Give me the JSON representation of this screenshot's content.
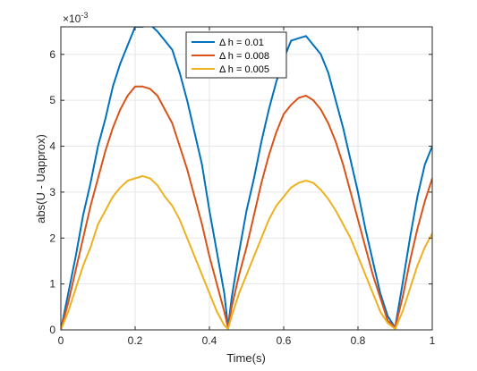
{
  "chart_data": {
    "type": "line",
    "title": "",
    "xlabel": "Time(s)",
    "ylabel": "abs(U - Uapprox)",
    "xlim": [
      0,
      1
    ],
    "ylim": [
      0,
      6.6
    ],
    "y_exponent_label": "×10",
    "y_exponent_power": "-3",
    "grid": true,
    "legend_position": "top-center",
    "x_ticks": [
      0,
      0.2,
      0.4,
      0.6,
      0.8,
      1
    ],
    "x_tick_labels": [
      "0",
      "0.2",
      "0.4",
      "0.6",
      "0.8",
      "1"
    ],
    "y_ticks": [
      0,
      1,
      2,
      3,
      4,
      5,
      6
    ],
    "y_tick_labels": [
      "0",
      "1",
      "2",
      "3",
      "4",
      "5",
      "6"
    ],
    "series": [
      {
        "name": "Δ h = 0.01",
        "color": "#0072BD",
        "x": [
          0,
          0.02,
          0.04,
          0.06,
          0.08,
          0.1,
          0.12,
          0.14,
          0.16,
          0.18,
          0.2,
          0.22,
          0.24,
          0.26,
          0.28,
          0.3,
          0.32,
          0.34,
          0.36,
          0.38,
          0.4,
          0.42,
          0.44,
          0.45,
          0.46,
          0.48,
          0.5,
          0.52,
          0.54,
          0.56,
          0.58,
          0.6,
          0.62,
          0.64,
          0.66,
          0.68,
          0.7,
          0.72,
          0.74,
          0.76,
          0.78,
          0.8,
          0.82,
          0.84,
          0.86,
          0.88,
          0.9,
          0.92,
          0.94,
          0.96,
          0.98,
          1.0
        ],
        "y": [
          0,
          0.8,
          1.6,
          2.5,
          3.2,
          4.0,
          4.6,
          5.3,
          5.8,
          6.2,
          6.6,
          6.6,
          6.65,
          6.5,
          6.3,
          6.1,
          5.6,
          5.0,
          4.3,
          3.6,
          2.6,
          1.7,
          0.8,
          0.05,
          0.7,
          1.7,
          2.6,
          3.3,
          4.1,
          4.8,
          5.4,
          5.9,
          6.3,
          6.35,
          6.4,
          6.2,
          6.0,
          5.6,
          5.0,
          4.4,
          3.7,
          3.0,
          2.2,
          1.5,
          0.8,
          0.3,
          0.05,
          1.0,
          2.0,
          2.9,
          3.6,
          4.0
        ]
      },
      {
        "name": "Δ h = 0.008",
        "color": "#D95319",
        "x": [
          0,
          0.02,
          0.04,
          0.06,
          0.08,
          0.1,
          0.12,
          0.14,
          0.16,
          0.18,
          0.2,
          0.22,
          0.24,
          0.26,
          0.28,
          0.3,
          0.32,
          0.34,
          0.36,
          0.38,
          0.4,
          0.42,
          0.44,
          0.45,
          0.46,
          0.48,
          0.5,
          0.52,
          0.54,
          0.56,
          0.58,
          0.6,
          0.62,
          0.64,
          0.66,
          0.68,
          0.7,
          0.72,
          0.74,
          0.76,
          0.78,
          0.8,
          0.82,
          0.84,
          0.86,
          0.88,
          0.9,
          0.92,
          0.94,
          0.96,
          0.98,
          1.0
        ],
        "y": [
          0,
          0.6,
          1.3,
          2.0,
          2.7,
          3.3,
          3.9,
          4.4,
          4.8,
          5.1,
          5.3,
          5.3,
          5.25,
          5.1,
          4.8,
          4.5,
          4.0,
          3.5,
          2.9,
          2.3,
          1.6,
          1.0,
          0.4,
          0.05,
          0.5,
          1.2,
          1.8,
          2.5,
          3.2,
          3.8,
          4.3,
          4.7,
          4.9,
          5.05,
          5.1,
          5.0,
          4.8,
          4.5,
          4.1,
          3.6,
          3.0,
          2.4,
          1.8,
          1.2,
          0.7,
          0.2,
          0.05,
          0.7,
          1.5,
          2.2,
          2.8,
          3.3
        ]
      },
      {
        "name": "Δ h = 0.005",
        "color": "#EDB120",
        "x": [
          0,
          0.02,
          0.04,
          0.06,
          0.08,
          0.1,
          0.12,
          0.14,
          0.16,
          0.18,
          0.2,
          0.22,
          0.24,
          0.26,
          0.28,
          0.3,
          0.32,
          0.34,
          0.36,
          0.38,
          0.4,
          0.42,
          0.44,
          0.45,
          0.46,
          0.48,
          0.5,
          0.52,
          0.54,
          0.56,
          0.58,
          0.6,
          0.62,
          0.64,
          0.66,
          0.68,
          0.7,
          0.72,
          0.74,
          0.76,
          0.78,
          0.8,
          0.82,
          0.84,
          0.86,
          0.88,
          0.9,
          0.92,
          0.94,
          0.96,
          0.98,
          1.0
        ],
        "y": [
          0,
          0.4,
          0.9,
          1.4,
          1.8,
          2.3,
          2.6,
          2.9,
          3.1,
          3.25,
          3.3,
          3.35,
          3.3,
          3.15,
          2.9,
          2.7,
          2.4,
          2.0,
          1.6,
          1.2,
          0.8,
          0.4,
          0.1,
          0.02,
          0.3,
          0.8,
          1.2,
          1.6,
          2.0,
          2.4,
          2.7,
          2.9,
          3.1,
          3.2,
          3.25,
          3.2,
          3.05,
          2.85,
          2.6,
          2.3,
          2.0,
          1.6,
          1.2,
          0.8,
          0.4,
          0.15,
          0.02,
          0.4,
          0.9,
          1.4,
          1.8,
          2.1
        ]
      }
    ]
  }
}
